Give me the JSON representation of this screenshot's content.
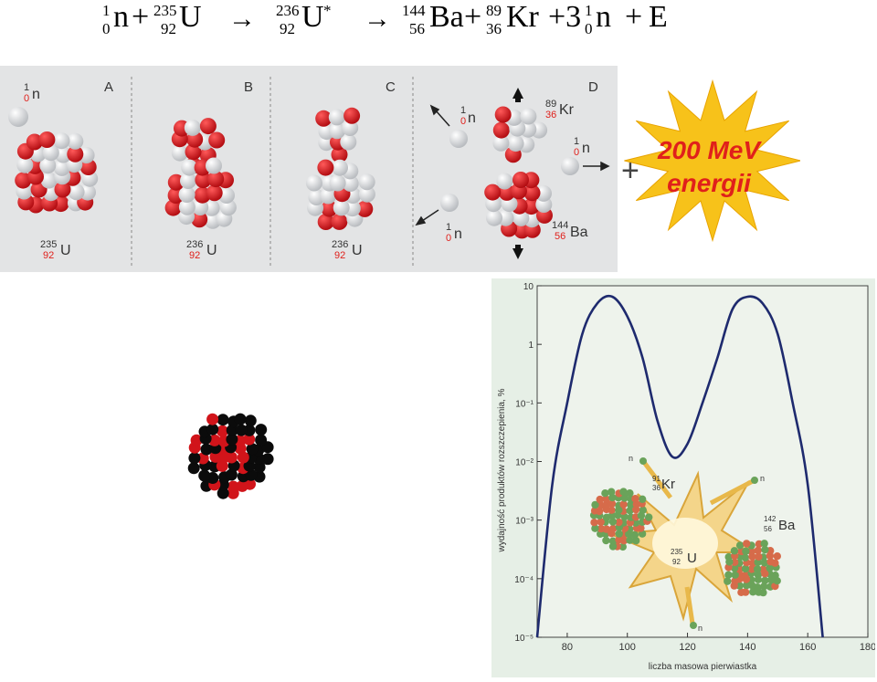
{
  "equation": {
    "n1": {
      "mass": "1",
      "atomic": "0",
      "symbol": "n"
    },
    "plus1": "+",
    "u235": {
      "mass": "235",
      "atomic": "92",
      "symbol": "U"
    },
    "arrow1": "→",
    "u236": {
      "mass": "236",
      "atomic": "92",
      "symbol": "U",
      "star": "*"
    },
    "arrow2": "→",
    "ba": {
      "mass": "144",
      "atomic": "56",
      "symbol": "Ba"
    },
    "plus2": "+",
    "kr": {
      "mass": "89",
      "atomic": "36",
      "symbol": "Kr"
    },
    "plus3": "+3",
    "n2": {
      "mass": "1",
      "atomic": "0",
      "symbol": "n"
    },
    "plus4": "+",
    "energy": "E"
  },
  "stages": {
    "A": {
      "letter": "A",
      "neutron": {
        "mass": "1",
        "atomic": "0",
        "symbol": "n"
      },
      "nucleus": {
        "mass": "235",
        "atomic": "92",
        "symbol": "U"
      }
    },
    "B": {
      "letter": "B",
      "nucleus": {
        "mass": "236",
        "atomic": "92",
        "symbol": "U"
      }
    },
    "C": {
      "letter": "C",
      "nucleus": {
        "mass": "236",
        "atomic": "92",
        "symbol": "U"
      }
    },
    "D": {
      "letter": "D",
      "kr": {
        "mass": "89",
        "atomic": "36",
        "symbol": "Kr"
      },
      "ba": {
        "mass": "144",
        "atomic": "56",
        "symbol": "Ba"
      },
      "neutron_a": {
        "mass": "1",
        "atomic": "0",
        "symbol": "n"
      },
      "neutron_b": {
        "mass": "1",
        "atomic": "0",
        "symbol": "n"
      },
      "neutron_c": {
        "mass": "1",
        "atomic": "0",
        "symbol": "n"
      }
    }
  },
  "burst": {
    "plus": "+",
    "line1": "200 MeV",
    "line2": "energii",
    "fill": "#f7c21a",
    "text_color": "#e0201b"
  },
  "chart_data": {
    "type": "line",
    "xlabel": "liczba masowa pierwiastka",
    "ylabel": "wydajność produktów rozszczepienia, %",
    "x_ticks": [
      "80",
      "100",
      "120",
      "140",
      "160",
      "180"
    ],
    "y_ticks": [
      "10",
      "1",
      "10⁻¹",
      "10⁻²",
      "10⁻³",
      "10⁻⁴",
      "10⁻⁵"
    ],
    "xlim": [
      70,
      180
    ],
    "ylim_log10": [
      -5,
      1
    ],
    "y_scale": "log",
    "series": [
      {
        "x": [
          70,
          75,
          80,
          85,
          90,
          95,
          100,
          105,
          110,
          115,
          120,
          125,
          130,
          135,
          140,
          145,
          150,
          155,
          160,
          165
        ],
        "y": [
          1e-05,
          0.004,
          0.1,
          1.5,
          5,
          6.5,
          3,
          0.6,
          0.05,
          0.012,
          0.02,
          0.1,
          0.6,
          4,
          6.5,
          5,
          1.5,
          0.1,
          0.004,
          1e-05
        ]
      }
    ],
    "inset": {
      "kr": {
        "mass": "91",
        "atomic": "36",
        "symbol": "Kr"
      },
      "ba": {
        "mass": "142",
        "atomic": "56",
        "symbol": "Ba"
      },
      "u": {
        "mass": "235",
        "atomic": "92",
        "symbol": "U"
      },
      "neutron_label": "n"
    }
  }
}
